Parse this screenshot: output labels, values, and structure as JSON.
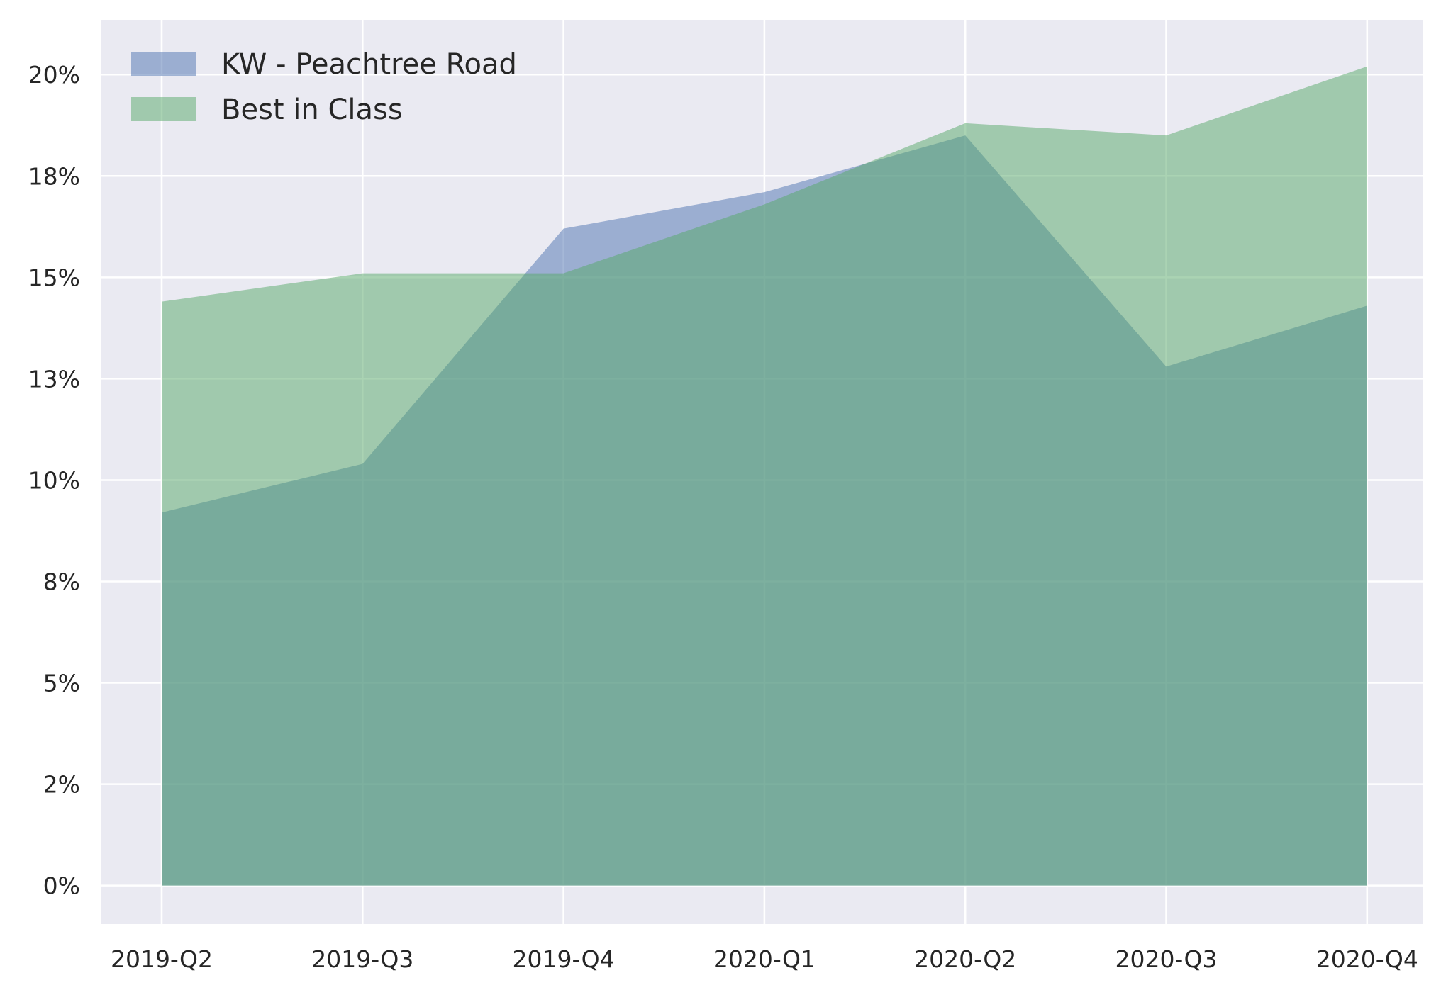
{
  "chart_data": {
    "type": "area",
    "title": "",
    "xlabel": "",
    "ylabel": "",
    "categories": [
      "2019-Q2",
      "2019-Q3",
      "2019-Q4",
      "2020-Q1",
      "2020-Q2",
      "2020-Q3",
      "2020-Q4"
    ],
    "series": [
      {
        "name": "KW - Peachtree Road",
        "values": [
          0.092,
          0.104,
          0.162,
          0.171,
          0.185,
          0.128,
          0.143
        ],
        "color": "#4c72b0"
      },
      {
        "name": "Best in Class",
        "values": [
          0.144,
          0.151,
          0.151,
          0.168,
          0.188,
          0.185,
          0.202
        ],
        "color": "#55a868"
      }
    ],
    "yticks": [
      0,
      0.025,
      0.05,
      0.075,
      0.1,
      0.125,
      0.15,
      0.175,
      0.2
    ],
    "ytick_labels": [
      "0%",
      "2%",
      "5%",
      "8%",
      "10%",
      "13%",
      "15%",
      "18%",
      "20%"
    ],
    "ylim": [
      -0.0095,
      0.2135
    ],
    "grid": true,
    "legend_position": "top-left",
    "colors": {
      "background": "#eaeaf2",
      "grid": "#ffffff",
      "text": "#262626"
    },
    "alpha": 0.5
  }
}
